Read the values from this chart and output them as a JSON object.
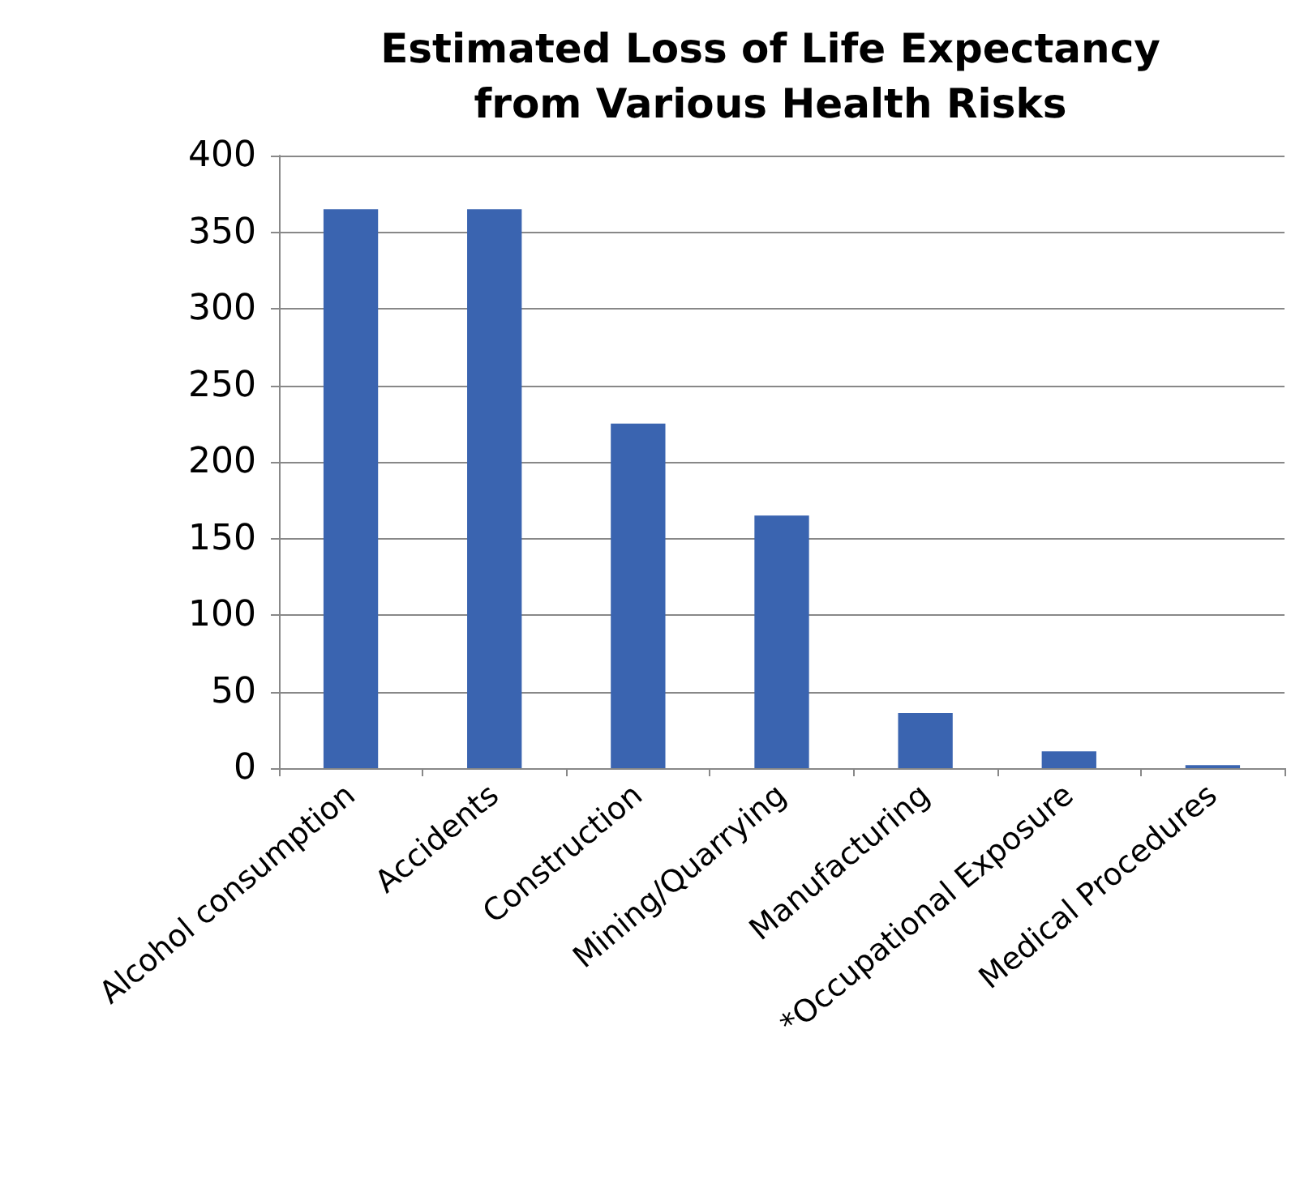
{
  "chart_data": {
    "type": "bar",
    "title": "Estimated Loss of Life Expectancy\nfrom Various Health Risks",
    "categories": [
      "Alcohol consumption",
      "Accidents",
      "Construction",
      "Mining/Quarrying",
      "Manufacturing",
      "*Occupational Exposure",
      "Medical Procedures"
    ],
    "values": [
      365,
      365,
      225,
      165,
      36,
      11,
      2
    ],
    "color": "#3a64b0",
    "ylim": [
      0,
      400
    ],
    "yticks": [
      0,
      50,
      100,
      150,
      200,
      250,
      300,
      350,
      400
    ],
    "grid": true
  }
}
